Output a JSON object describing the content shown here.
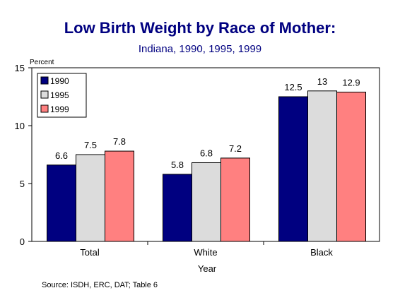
{
  "title": "Low Birth Weight by Race of Mother:",
  "subtitle": "Indiana, 1990, 1995, 1999",
  "source": "Source:  ISDH, ERC, DAT; Table 6",
  "chart_data": {
    "type": "bar",
    "title": "Low Birth Weight by Race of Mother:",
    "subtitle": "Indiana, 1990, 1995, 1999",
    "xlabel": "Year",
    "ylabel": "Percent",
    "ylim": [
      0,
      15
    ],
    "yticks": [
      0,
      5,
      10,
      15
    ],
    "grid": false,
    "legend": "top-left",
    "categories": [
      "Total",
      "White",
      "Black"
    ],
    "series": [
      {
        "name": "1990",
        "color": "#000080",
        "values": [
          6.6,
          5.8,
          12.5
        ],
        "labels": [
          "6.6",
          "5.8",
          "12.5"
        ]
      },
      {
        "name": "1995",
        "color": "#DCDCDC",
        "values": [
          7.5,
          6.8,
          13
        ],
        "labels": [
          "7.5",
          "6.8",
          "13"
        ]
      },
      {
        "name": "1999",
        "color": "#FF8080",
        "values": [
          7.8,
          7.2,
          12.9
        ],
        "labels": [
          "7.8",
          "7.2",
          "12.9"
        ]
      }
    ]
  }
}
